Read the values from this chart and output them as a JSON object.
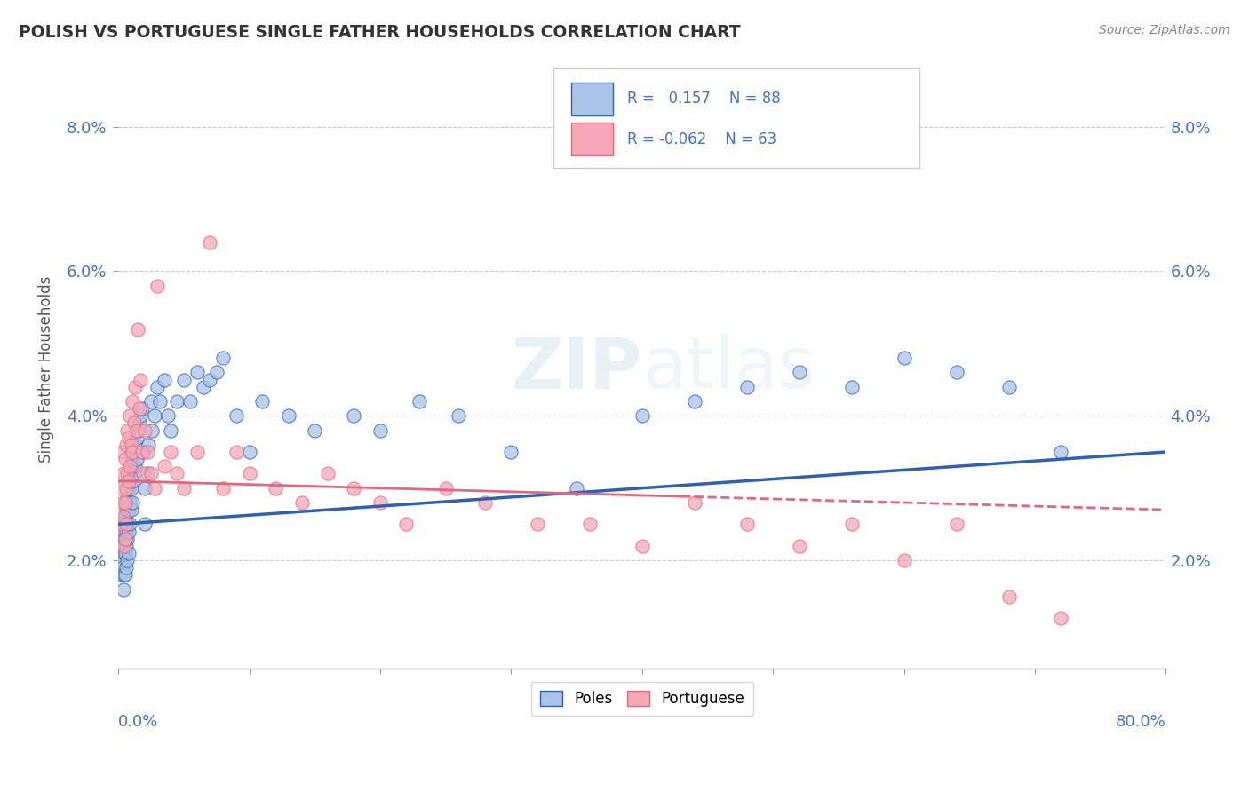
{
  "title": "POLISH VS PORTUGUESE SINGLE FATHER HOUSEHOLDS CORRELATION CHART",
  "source": "Source: ZipAtlas.com",
  "ylabel": "Single Father Households",
  "ytick_labels": [
    "2.0%",
    "4.0%",
    "6.0%",
    "8.0%"
  ],
  "ytick_values": [
    0.02,
    0.04,
    0.06,
    0.08
  ],
  "xlim": [
    0.0,
    0.8
  ],
  "ylim": [
    0.005,
    0.088
  ],
  "poles_color": "#aac4e8",
  "portuguese_color": "#f4a8b8",
  "poles_line_color": "#3060b0",
  "portuguese_line_color": "#e06880",
  "background_color": "#ffffff",
  "poles_x": [
    0.001,
    0.002,
    0.002,
    0.002,
    0.003,
    0.003,
    0.003,
    0.004,
    0.004,
    0.004,
    0.004,
    0.004,
    0.005,
    0.005,
    0.005,
    0.005,
    0.006,
    0.006,
    0.006,
    0.006,
    0.007,
    0.007,
    0.007,
    0.007,
    0.008,
    0.008,
    0.008,
    0.008,
    0.009,
    0.009,
    0.009,
    0.01,
    0.01,
    0.01,
    0.011,
    0.011,
    0.011,
    0.012,
    0.012,
    0.013,
    0.013,
    0.014,
    0.014,
    0.015,
    0.016,
    0.017,
    0.018,
    0.019,
    0.02,
    0.02,
    0.022,
    0.023,
    0.025,
    0.026,
    0.028,
    0.03,
    0.032,
    0.035,
    0.038,
    0.04,
    0.045,
    0.05,
    0.055,
    0.06,
    0.065,
    0.07,
    0.075,
    0.08,
    0.09,
    0.1,
    0.11,
    0.13,
    0.15,
    0.18,
    0.2,
    0.23,
    0.26,
    0.3,
    0.35,
    0.4,
    0.44,
    0.48,
    0.52,
    0.56,
    0.6,
    0.64,
    0.68,
    0.72
  ],
  "poles_y": [
    0.025,
    0.022,
    0.02,
    0.018,
    0.024,
    0.022,
    0.019,
    0.023,
    0.021,
    0.018,
    0.016,
    0.025,
    0.026,
    0.023,
    0.021,
    0.018,
    0.027,
    0.024,
    0.022,
    0.019,
    0.028,
    0.025,
    0.023,
    0.02,
    0.03,
    0.027,
    0.024,
    0.021,
    0.032,
    0.028,
    0.025,
    0.033,
    0.03,
    0.027,
    0.034,
    0.031,
    0.028,
    0.035,
    0.032,
    0.036,
    0.033,
    0.037,
    0.034,
    0.038,
    0.039,
    0.04,
    0.041,
    0.035,
    0.03,
    0.025,
    0.032,
    0.036,
    0.042,
    0.038,
    0.04,
    0.044,
    0.042,
    0.045,
    0.04,
    0.038,
    0.042,
    0.045,
    0.042,
    0.046,
    0.044,
    0.045,
    0.046,
    0.048,
    0.04,
    0.035,
    0.042,
    0.04,
    0.038,
    0.04,
    0.038,
    0.042,
    0.04,
    0.035,
    0.03,
    0.04,
    0.042,
    0.044,
    0.046,
    0.044,
    0.048,
    0.046,
    0.044,
    0.035
  ],
  "port_x": [
    0.002,
    0.002,
    0.003,
    0.003,
    0.004,
    0.004,
    0.004,
    0.005,
    0.005,
    0.005,
    0.006,
    0.006,
    0.006,
    0.007,
    0.007,
    0.008,
    0.008,
    0.009,
    0.009,
    0.01,
    0.011,
    0.011,
    0.012,
    0.013,
    0.014,
    0.015,
    0.016,
    0.017,
    0.018,
    0.019,
    0.02,
    0.022,
    0.025,
    0.028,
    0.03,
    0.035,
    0.04,
    0.045,
    0.05,
    0.06,
    0.07,
    0.08,
    0.09,
    0.1,
    0.12,
    0.14,
    0.16,
    0.18,
    0.2,
    0.22,
    0.25,
    0.28,
    0.32,
    0.36,
    0.4,
    0.44,
    0.48,
    0.52,
    0.56,
    0.6,
    0.64,
    0.68,
    0.72
  ],
  "port_y": [
    0.03,
    0.025,
    0.035,
    0.028,
    0.032,
    0.026,
    0.022,
    0.034,
    0.028,
    0.023,
    0.036,
    0.03,
    0.025,
    0.038,
    0.032,
    0.037,
    0.031,
    0.04,
    0.033,
    0.036,
    0.042,
    0.035,
    0.039,
    0.044,
    0.038,
    0.052,
    0.041,
    0.045,
    0.035,
    0.032,
    0.038,
    0.035,
    0.032,
    0.03,
    0.058,
    0.033,
    0.035,
    0.032,
    0.03,
    0.035,
    0.064,
    0.03,
    0.035,
    0.032,
    0.03,
    0.028,
    0.032,
    0.03,
    0.028,
    0.025,
    0.03,
    0.028,
    0.025,
    0.025,
    0.022,
    0.028,
    0.025,
    0.022,
    0.025,
    0.02,
    0.025,
    0.015,
    0.012
  ]
}
